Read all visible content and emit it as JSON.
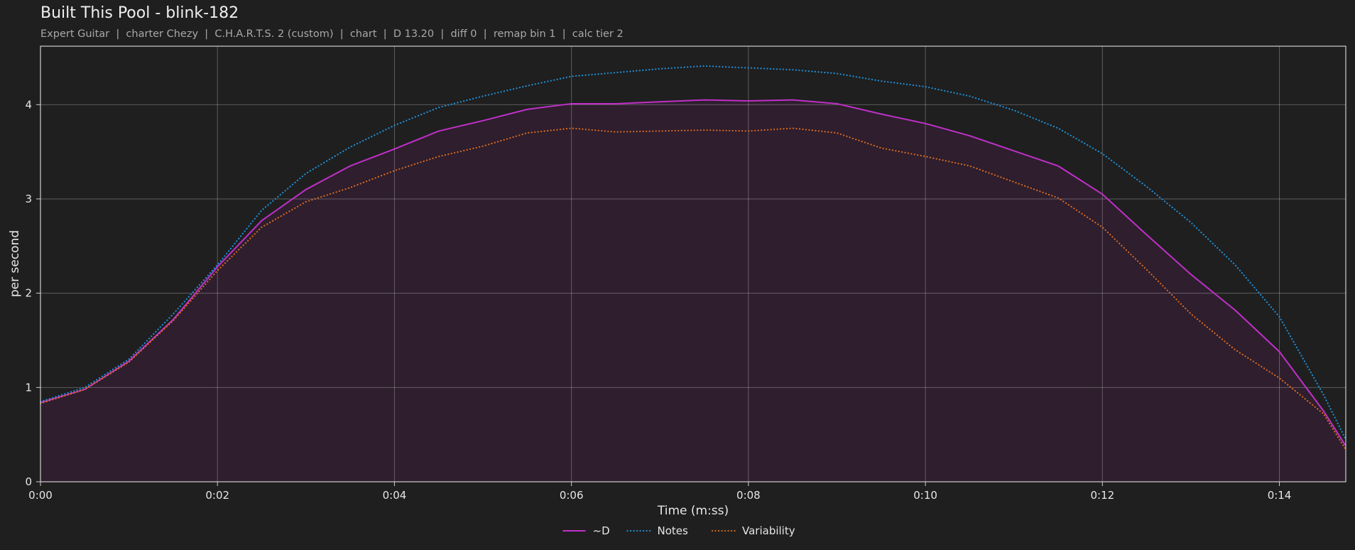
{
  "header": {
    "title": "Built This Pool - blink-182",
    "subtitle": "Expert Guitar  |  charter Chezy  |  C.H.A.R.T.S. 2 (custom)  |  chart  |  D 13.20  |  diff 0  |  remap bin 1  |  calc tier 2"
  },
  "chart_data": {
    "type": "line",
    "xlabel": "Time (m:ss)",
    "ylabel": "per second",
    "xlim": [
      0,
      14.75
    ],
    "ylim": [
      0,
      4.62
    ],
    "x_ticks": [
      {
        "value": 0,
        "label": "0:00"
      },
      {
        "value": 2,
        "label": "0:02"
      },
      {
        "value": 4,
        "label": "0:04"
      },
      {
        "value": 6,
        "label": "0:06"
      },
      {
        "value": 8,
        "label": "0:08"
      },
      {
        "value": 10,
        "label": "0:10"
      },
      {
        "value": 12,
        "label": "0:12"
      },
      {
        "value": 14,
        "label": "0:14"
      }
    ],
    "y_ticks": [
      {
        "value": 0,
        "label": "0"
      },
      {
        "value": 1,
        "label": "1"
      },
      {
        "value": 2,
        "label": "2"
      },
      {
        "value": 3,
        "label": "3"
      },
      {
        "value": 4,
        "label": "4"
      }
    ],
    "grid": true,
    "legend_position": "bottom-center",
    "series": [
      {
        "name": "~D",
        "color": "#c030c8",
        "style": "solid",
        "filled": true,
        "fill_color": "#2e1e2e",
        "points": [
          [
            0,
            0.84
          ],
          [
            0.5,
            0.98
          ],
          [
            1,
            1.28
          ],
          [
            1.5,
            1.72
          ],
          [
            2,
            2.28
          ],
          [
            2.5,
            2.77
          ],
          [
            3,
            3.1
          ],
          [
            3.5,
            3.35
          ],
          [
            4,
            3.53
          ],
          [
            4.5,
            3.72
          ],
          [
            5,
            3.83
          ],
          [
            5.5,
            3.95
          ],
          [
            6,
            4.01
          ],
          [
            6.5,
            4.01
          ],
          [
            7,
            4.03
          ],
          [
            7.5,
            4.05
          ],
          [
            8,
            4.04
          ],
          [
            8.5,
            4.05
          ],
          [
            9,
            4.01
          ],
          [
            9.5,
            3.9
          ],
          [
            10,
            3.8
          ],
          [
            10.5,
            3.67
          ],
          [
            11,
            3.51
          ],
          [
            11.5,
            3.35
          ],
          [
            12,
            3.05
          ],
          [
            12.5,
            2.62
          ],
          [
            13,
            2.2
          ],
          [
            13.5,
            1.82
          ],
          [
            14,
            1.38
          ],
          [
            14.5,
            0.75
          ],
          [
            14.75,
            0.38
          ]
        ]
      },
      {
        "name": "Notes",
        "color": "#1f8fd8",
        "style": "dotted",
        "points": [
          [
            0,
            0.85
          ],
          [
            0.5,
            1.0
          ],
          [
            1,
            1.3
          ],
          [
            1.5,
            1.78
          ],
          [
            2,
            2.3
          ],
          [
            2.5,
            2.88
          ],
          [
            3,
            3.27
          ],
          [
            3.5,
            3.55
          ],
          [
            4,
            3.78
          ],
          [
            4.5,
            3.97
          ],
          [
            5,
            4.09
          ],
          [
            5.5,
            4.2
          ],
          [
            6,
            4.3
          ],
          [
            6.5,
            4.34
          ],
          [
            7,
            4.38
          ],
          [
            7.5,
            4.41
          ],
          [
            8,
            4.39
          ],
          [
            8.5,
            4.37
          ],
          [
            9,
            4.33
          ],
          [
            9.5,
            4.25
          ],
          [
            10,
            4.19
          ],
          [
            10.5,
            4.09
          ],
          [
            11,
            3.94
          ],
          [
            11.5,
            3.75
          ],
          [
            12,
            3.48
          ],
          [
            12.5,
            3.13
          ],
          [
            13,
            2.75
          ],
          [
            13.5,
            2.3
          ],
          [
            14,
            1.75
          ],
          [
            14.5,
            0.92
          ],
          [
            14.75,
            0.45
          ]
        ]
      },
      {
        "name": "Variability",
        "color": "#d86a20",
        "style": "dotted",
        "points": [
          [
            0,
            0.83
          ],
          [
            0.5,
            0.98
          ],
          [
            1,
            1.27
          ],
          [
            1.5,
            1.71
          ],
          [
            2,
            2.24
          ],
          [
            2.5,
            2.7
          ],
          [
            3,
            2.97
          ],
          [
            3.5,
            3.12
          ],
          [
            4,
            3.3
          ],
          [
            4.5,
            3.45
          ],
          [
            5,
            3.56
          ],
          [
            5.5,
            3.7
          ],
          [
            6,
            3.75
          ],
          [
            6.5,
            3.71
          ],
          [
            7,
            3.72
          ],
          [
            7.5,
            3.73
          ],
          [
            8,
            3.72
          ],
          [
            8.5,
            3.75
          ],
          [
            9,
            3.7
          ],
          [
            9.5,
            3.54
          ],
          [
            10,
            3.45
          ],
          [
            10.5,
            3.35
          ],
          [
            11,
            3.18
          ],
          [
            11.5,
            3.01
          ],
          [
            12,
            2.7
          ],
          [
            12.5,
            2.25
          ],
          [
            13,
            1.78
          ],
          [
            13.5,
            1.4
          ],
          [
            14,
            1.1
          ],
          [
            14.5,
            0.72
          ],
          [
            14.75,
            0.34
          ]
        ]
      }
    ]
  }
}
